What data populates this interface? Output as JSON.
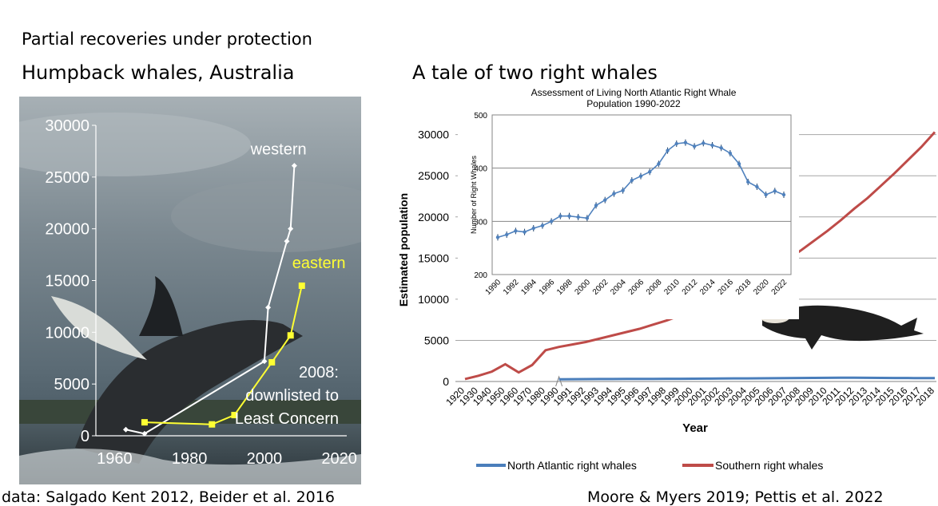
{
  "slide": {
    "heading": "Partial recoveries under protection",
    "left_subtitle": "Humpback whales, Australia",
    "right_subtitle": "A tale of two right whales",
    "left_credit": "data: Salgado Kent 2012, Beider et al. 2016",
    "right_credit": "Moore & Myers 2019; Pettis et al. 2022"
  },
  "colors": {
    "western": "#ffffff",
    "eastern": "#ffff33",
    "north_atlantic": "#4a7ebb",
    "southern": "#be4b48",
    "inset_line": "#4f81bd"
  },
  "chart_data": [
    {
      "type": "line",
      "title": "",
      "xlim": [
        1955,
        2022
      ],
      "ylim": [
        0,
        30000
      ],
      "x_ticks": [
        "1960",
        "1980",
        "2000",
        "2020"
      ],
      "y_ticks": [
        "0",
        "5000",
        "10000",
        "15000",
        "20000",
        "25000",
        "30000"
      ],
      "background": "photo of a breaching humpback whale",
      "series": [
        {
          "name": "western",
          "x": [
            1963,
            1968,
            2000,
            2001,
            2006,
            2007,
            2008
          ],
          "y": [
            600,
            200,
            7200,
            12400,
            18800,
            20000,
            26100
          ]
        },
        {
          "name": "eastern",
          "x": [
            1968,
            1986,
            1992,
            2002,
            2007,
            2010
          ],
          "y": [
            1300,
            1100,
            2000,
            7100,
            9700,
            14500
          ]
        }
      ],
      "annotations": [
        "2008:",
        "downlisted to",
        "Least Concern"
      ]
    },
    {
      "type": "line",
      "title": "",
      "xlabel": "Year",
      "ylabel": "Estimated population",
      "ylim": [
        0,
        32000
      ],
      "categories": [
        "1920",
        "1930",
        "1940",
        "1950",
        "1960",
        "1970",
        "1980",
        "1990",
        "1991",
        "1992",
        "1993",
        "1994",
        "1995",
        "1996",
        "1997",
        "1998",
        "1999",
        "2000",
        "2001",
        "2002",
        "2003",
        "2004",
        "2005",
        "2006",
        "2007",
        "2008",
        "2009",
        "2010",
        "2011",
        "2012",
        "2013",
        "2014",
        "2015",
        "2016",
        "2017",
        "2018"
      ],
      "y_ticks": [
        "0",
        "5000",
        "10000",
        "15000",
        "20000",
        "25000",
        "30000"
      ],
      "legend_position": "bottom",
      "series": [
        {
          "name": "North Atlantic right whales",
          "values": [
            null,
            null,
            null,
            null,
            null,
            null,
            null,
            270,
            280,
            290,
            300,
            300,
            310,
            320,
            320,
            330,
            330,
            340,
            350,
            360,
            370,
            380,
            390,
            400,
            410,
            420,
            440,
            450,
            460,
            460,
            450,
            440,
            430,
            420,
            410,
            410
          ]
        },
        {
          "name": "Southern right whales",
          "values": [
            300,
            700,
            1200,
            2100,
            1100,
            2000,
            3800,
            4200,
            4500,
            4800,
            5200,
            5600,
            6000,
            6400,
            6900,
            7400,
            8000,
            8700,
            9400,
            10100,
            11000,
            11900,
            12800,
            13800,
            14800,
            15900,
            17100,
            18300,
            19600,
            21000,
            22300,
            23800,
            25300,
            26900,
            28500,
            30300
          ]
        }
      ]
    },
    {
      "type": "line",
      "title": "Assessment of Living North Atlantic Right Whale Population 1990-2022",
      "title_lines": [
        "Assessment of Living North Atlantic Right Whale",
        "Population 1990-2022"
      ],
      "ylabel": "Number of Right Whales",
      "ylim": [
        200,
        500
      ],
      "y_ticks": [
        "200",
        "300",
        "400",
        "500"
      ],
      "x_ticks": [
        "1990",
        "1992",
        "1994",
        "1996",
        "1998",
        "2000",
        "2002",
        "2004",
        "2006",
        "2008",
        "2010",
        "2012",
        "2014",
        "2016",
        "2018",
        "2020",
        "2022"
      ],
      "x": [
        1990,
        1991,
        1992,
        1993,
        1994,
        1995,
        1996,
        1997,
        1998,
        1999,
        2000,
        2001,
        2002,
        2003,
        2004,
        2005,
        2006,
        2007,
        2008,
        2009,
        2010,
        2011,
        2012,
        2013,
        2014,
        2015,
        2016,
        2017,
        2018,
        2019,
        2020,
        2021,
        2022
      ],
      "y": [
        270,
        275,
        282,
        280,
        287,
        292,
        300,
        310,
        310,
        308,
        306,
        330,
        340,
        352,
        358,
        377,
        385,
        393,
        408,
        433,
        446,
        448,
        441,
        447,
        443,
        438,
        428,
        408,
        374,
        365,
        350,
        357,
        350
      ],
      "error_bars": true
    }
  ]
}
